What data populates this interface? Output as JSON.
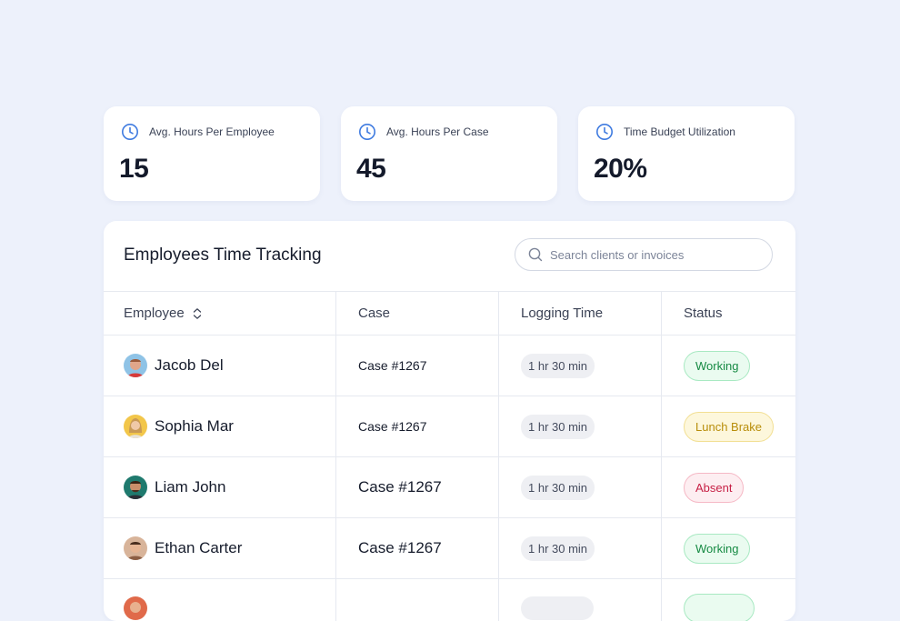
{
  "stats": [
    {
      "label": "Avg. Hours Per Employee",
      "value": "15",
      "icon": "clock-icon"
    },
    {
      "label": "Avg. Hours Per Case",
      "value": "45",
      "icon": "clock-icon"
    },
    {
      "label": "Time Budget Utilization",
      "value": "20%",
      "icon": "clock-icon"
    }
  ],
  "table": {
    "title": "Employees Time Tracking",
    "search_placeholder": "Search clients or invoices",
    "headers": {
      "employee": "Employee",
      "case": "Case",
      "logging_time": "Logging Time",
      "status": "Status"
    },
    "rows": [
      {
        "name": "Jacob Del",
        "case": "Case #1267",
        "time": "1 hr 30 min",
        "status": "Working"
      },
      {
        "name": "Sophia Mar",
        "case": "Case #1267",
        "time": "1 hr 30 min",
        "status": "Lunch Brake"
      },
      {
        "name": "Liam John",
        "case": "Case #1267",
        "time": "1 hr 30 min",
        "status": "Absent"
      },
      {
        "name": "Ethan Carter",
        "case": "Case #1267",
        "time": "1 hr 30 min",
        "status": "Working"
      }
    ]
  },
  "colors": {
    "accent": "#3f7be0",
    "working": "#168a43",
    "lunch_brake": "#b88d0a",
    "absent": "#c72146"
  }
}
